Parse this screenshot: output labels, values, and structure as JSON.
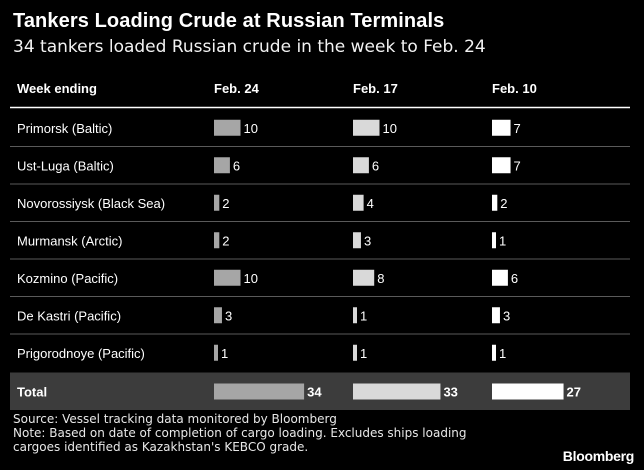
{
  "header": {
    "title": "Tankers Loading Crude at Russian Terminals",
    "subtitle": "34 tankers loaded Russian crude in the week to Feb. 24"
  },
  "chart_data": {
    "type": "table",
    "row_header_label": "Week ending",
    "columns": [
      "Feb. 24",
      "Feb. 17",
      "Feb. 10"
    ],
    "column_colors": [
      "#a6a6a6",
      "#d9d9d9",
      "#ffffff"
    ],
    "rows": [
      {
        "label": "Primorsk (Baltic)",
        "values": [
          10,
          10,
          7
        ]
      },
      {
        "label": "Ust-Luga (Baltic)",
        "values": [
          6,
          6,
          7
        ]
      },
      {
        "label": "Novorossiysk (Black Sea)",
        "values": [
          2,
          4,
          2
        ]
      },
      {
        "label": "Murmansk (Arctic)",
        "values": [
          2,
          3,
          1
        ]
      },
      {
        "label": "Kozmino (Pacific)",
        "values": [
          10,
          8,
          6
        ]
      },
      {
        "label": "De Kastri (Pacific)",
        "values": [
          3,
          1,
          3
        ]
      },
      {
        "label": "Prigorodnoye (Pacific)",
        "values": [
          1,
          1,
          1
        ]
      }
    ],
    "total": {
      "label": "Total",
      "values": [
        34,
        33,
        27
      ]
    }
  },
  "footer": {
    "source": "Source: Vessel tracking data monitored by Bloomberg",
    "note_line1": "Note: Based on date of completion of cargo loading. Excludes ships loading",
    "note_line2": "cargoes identified as Kazakhstan's KEBCO grade.",
    "brand": "Bloomberg"
  }
}
